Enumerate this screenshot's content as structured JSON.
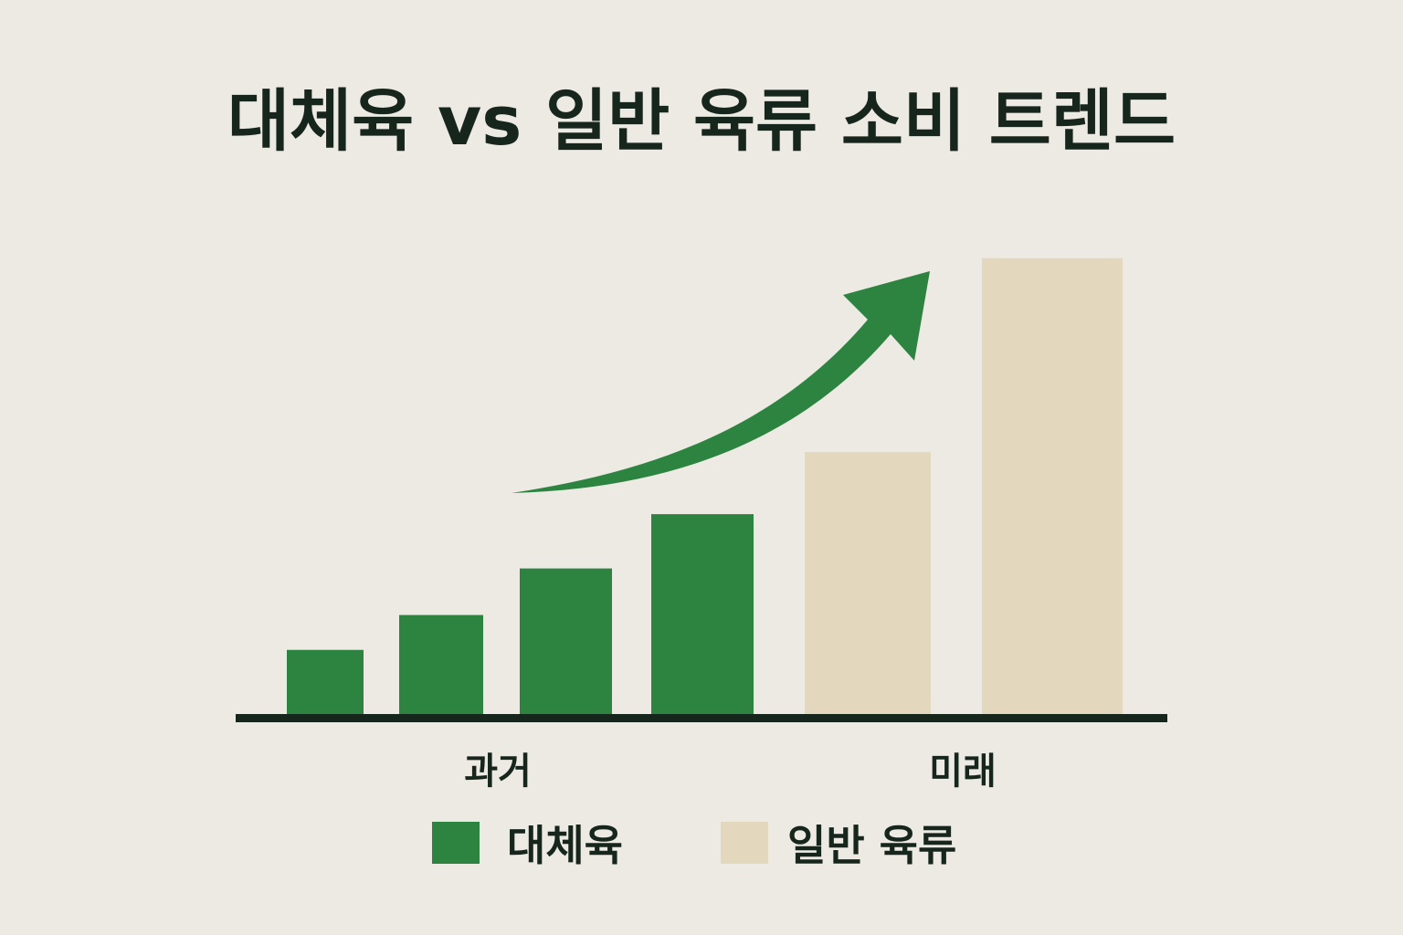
{
  "colors": {
    "background": "#ede9e3",
    "text": "#17261d",
    "axis": "#17261d",
    "alt_meat": "#2c8440",
    "conventional_meat": "#e3d7bd",
    "trend_arrow": "#2c8440"
  },
  "chart_data": {
    "type": "bar",
    "title": "대체육 vs 일반 육류 소비 트렌드",
    "xlabel": "",
    "ylabel": "",
    "categories": [
      "",
      "",
      "",
      "",
      "",
      ""
    ],
    "x_tick_labels": [
      "과거",
      "미래"
    ],
    "series": [
      {
        "name": "대체육",
        "color": "#2c8440",
        "values": [
          17,
          26,
          38,
          52,
          null,
          null
        ]
      },
      {
        "name": "일반 육류",
        "color": "#e3d7bd",
        "values": [
          null,
          null,
          null,
          null,
          68,
          118
        ]
      }
    ],
    "ylim": [
      0,
      125
    ],
    "grid": false,
    "legend": "bottom",
    "annotations": [
      {
        "type": "arrow",
        "description": "upward trend arrow over 대체육 bars"
      }
    ]
  }
}
